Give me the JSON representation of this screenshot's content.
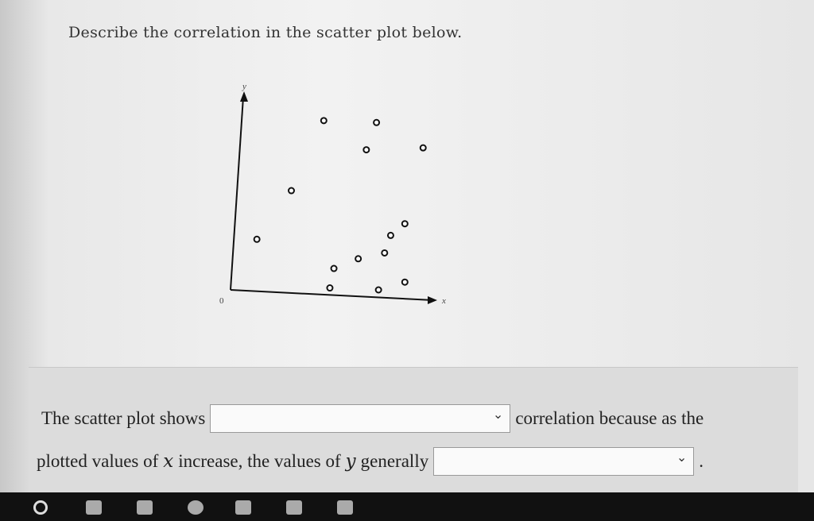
{
  "question": "Describe the correlation in the scatter plot below.",
  "chart_data": {
    "type": "scatter",
    "xlabel": "x",
    "ylabel": "y",
    "origin_label": "0",
    "x": [
      1.3,
      3.0,
      4.6,
      7.2,
      6.7,
      9.5,
      8.6,
      7.9,
      7.6,
      6.3,
      5.1,
      4.9,
      7.3,
      8.6
    ],
    "y": [
      2.6,
      5.1,
      8.7,
      8.6,
      7.2,
      7.3,
      3.4,
      2.8,
      1.9,
      1.6,
      1.1,
      0.1,
      0.0,
      0.4
    ],
    "xlim": [
      0,
      10
    ],
    "ylim": [
      0,
      10
    ]
  },
  "answer": {
    "line1_start": "The scatter plot shows",
    "line1_end": "correlation because as the",
    "line2_a": "plotted values of",
    "var_x": "x",
    "line2_b": "increase, the values of",
    "var_y": "y",
    "line2_c": "generally",
    "period": "."
  }
}
